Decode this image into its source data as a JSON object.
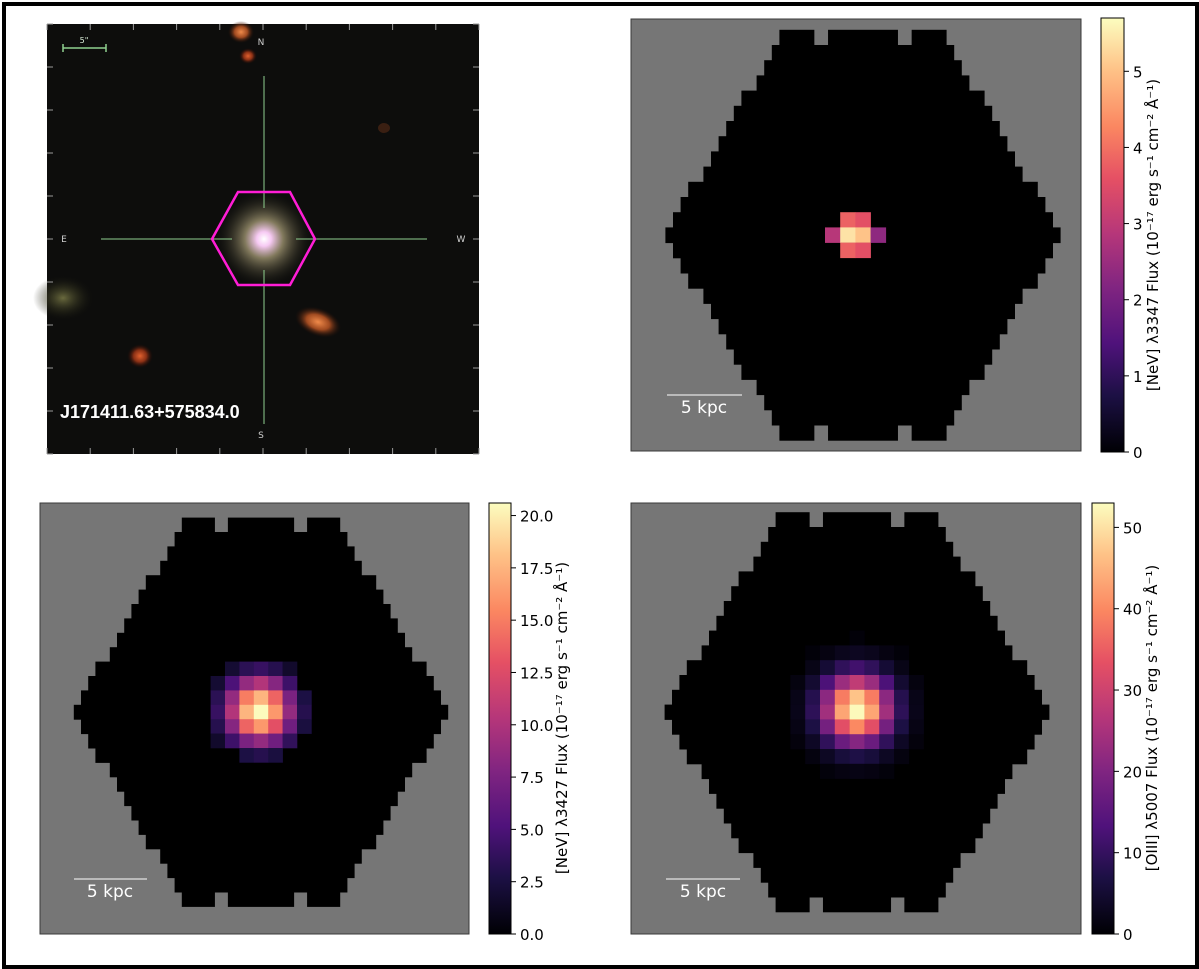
{
  "optical_image": {
    "object_name": "J171411.63+575834.0",
    "scale_bar_label": "5\"",
    "compass": {
      "north": "N",
      "south": "S",
      "east": "E",
      "west": "W"
    }
  },
  "scale_label": "5 kpc",
  "panels": [
    {
      "id": "nev3347",
      "colorbar_label": "[NeV] λ3347 Flux (10⁻¹⁷ erg s⁻¹ cm⁻² Å⁻¹)",
      "colorbar_ticks": [
        "0",
        "1",
        "2",
        "3",
        "4",
        "5"
      ],
      "colorbar_range": [
        0,
        5.7
      ],
      "colormap": "magma"
    },
    {
      "id": "nev3427",
      "colorbar_label": "[NeV] λ3427 Flux (10⁻¹⁷ erg s⁻¹ cm⁻² Å⁻¹)",
      "colorbar_ticks": [
        "0.0",
        "2.5",
        "5.0",
        "7.5",
        "10.0",
        "12.5",
        "15.0",
        "17.5",
        "20.0"
      ],
      "colorbar_range": [
        0,
        20.6
      ],
      "colormap": "magma"
    },
    {
      "id": "oiii5007",
      "colorbar_label": "[OIII] λ5007 Flux (10⁻¹⁷ erg s⁻¹ cm⁻² Å⁻¹)",
      "colorbar_ticks": [
        "0",
        "10",
        "20",
        "30",
        "40",
        "50"
      ],
      "colorbar_range": [
        0,
        53
      ],
      "colormap": "magma"
    }
  ],
  "colors": {
    "background_gray": "#767676",
    "footprint": "#000000",
    "hexagon": "#ff1dd6",
    "crosshair": "#8fd08f"
  }
}
